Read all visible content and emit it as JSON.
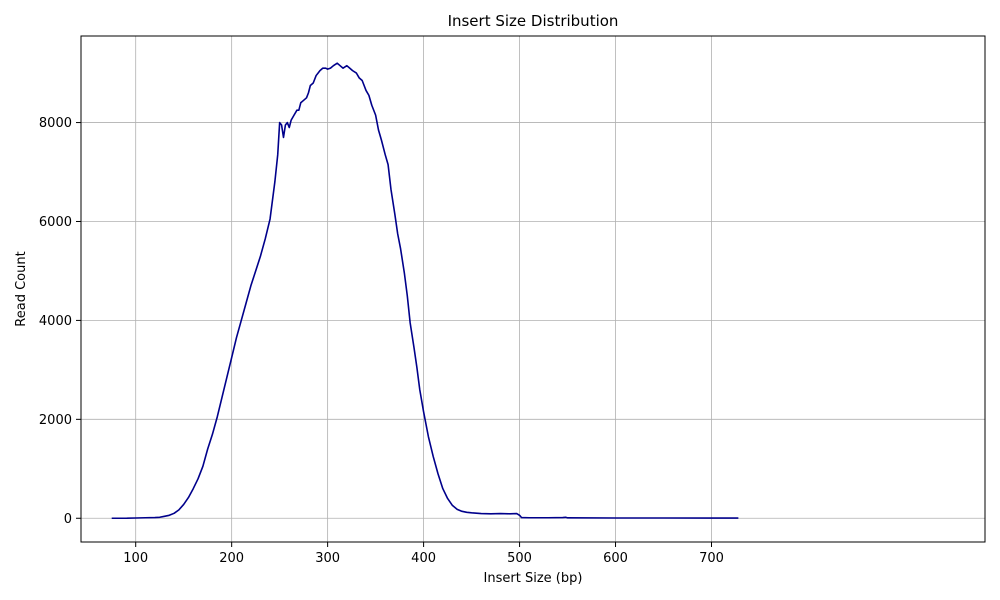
{
  "chart_data": {
    "type": "line",
    "title": "Insert Size Distribution",
    "xlabel": "Insert Size (bp)",
    "ylabel": "Read Count",
    "xlim": [
      43,
      985
    ],
    "ylim": [
      -480,
      9750
    ],
    "xticks": [
      100,
      200,
      300,
      400,
      500,
      600,
      700
    ],
    "yticks": [
      0,
      2000,
      4000,
      6000,
      8000
    ],
    "grid": true,
    "legend": "none",
    "series": [
      {
        "color": "#00008b",
        "points": [
          [
            75,
            0
          ],
          [
            90,
            0
          ],
          [
            100,
            5
          ],
          [
            110,
            10
          ],
          [
            120,
            15
          ],
          [
            125,
            20
          ],
          [
            130,
            40
          ],
          [
            135,
            60
          ],
          [
            140,
            100
          ],
          [
            145,
            170
          ],
          [
            150,
            280
          ],
          [
            155,
            420
          ],
          [
            160,
            600
          ],
          [
            165,
            800
          ],
          [
            170,
            1050
          ],
          [
            175,
            1400
          ],
          [
            180,
            1700
          ],
          [
            185,
            2050
          ],
          [
            190,
            2450
          ],
          [
            195,
            2850
          ],
          [
            200,
            3250
          ],
          [
            205,
            3650
          ],
          [
            210,
            4000
          ],
          [
            215,
            4350
          ],
          [
            220,
            4700
          ],
          [
            225,
            5000
          ],
          [
            230,
            5300
          ],
          [
            235,
            5650
          ],
          [
            240,
            6050
          ],
          [
            245,
            6800
          ],
          [
            248,
            7350
          ],
          [
            250,
            8000
          ],
          [
            252,
            7950
          ],
          [
            254,
            7700
          ],
          [
            256,
            7950
          ],
          [
            258,
            8000
          ],
          [
            260,
            7900
          ],
          [
            262,
            8050
          ],
          [
            265,
            8150
          ],
          [
            268,
            8250
          ],
          [
            270,
            8250
          ],
          [
            272,
            8400
          ],
          [
            275,
            8450
          ],
          [
            278,
            8500
          ],
          [
            280,
            8600
          ],
          [
            282,
            8750
          ],
          [
            285,
            8800
          ],
          [
            288,
            8950
          ],
          [
            290,
            9000
          ],
          [
            292,
            9050
          ],
          [
            295,
            9100
          ],
          [
            298,
            9100
          ],
          [
            300,
            9080
          ],
          [
            303,
            9100
          ],
          [
            306,
            9150
          ],
          [
            310,
            9200
          ],
          [
            313,
            9150
          ],
          [
            316,
            9100
          ],
          [
            320,
            9150
          ],
          [
            323,
            9100
          ],
          [
            326,
            9050
          ],
          [
            330,
            9000
          ],
          [
            333,
            8900
          ],
          [
            336,
            8850
          ],
          [
            340,
            8650
          ],
          [
            343,
            8550
          ],
          [
            346,
            8350
          ],
          [
            350,
            8150
          ],
          [
            353,
            7850
          ],
          [
            356,
            7650
          ],
          [
            360,
            7350
          ],
          [
            363,
            7150
          ],
          [
            366,
            6650
          ],
          [
            370,
            6150
          ],
          [
            373,
            5750
          ],
          [
            376,
            5450
          ],
          [
            380,
            4950
          ],
          [
            383,
            4500
          ],
          [
            386,
            3950
          ],
          [
            390,
            3450
          ],
          [
            393,
            3050
          ],
          [
            396,
            2600
          ],
          [
            400,
            2150
          ],
          [
            405,
            1650
          ],
          [
            410,
            1250
          ],
          [
            415,
            900
          ],
          [
            420,
            600
          ],
          [
            425,
            400
          ],
          [
            430,
            260
          ],
          [
            435,
            180
          ],
          [
            440,
            140
          ],
          [
            445,
            120
          ],
          [
            450,
            110
          ],
          [
            460,
            95
          ],
          [
            470,
            90
          ],
          [
            480,
            95
          ],
          [
            490,
            90
          ],
          [
            497,
            95
          ],
          [
            500,
            60
          ],
          [
            502,
            15
          ],
          [
            510,
            10
          ],
          [
            530,
            10
          ],
          [
            545,
            15
          ],
          [
            548,
            20
          ],
          [
            550,
            8
          ],
          [
            600,
            5
          ],
          [
            650,
            5
          ],
          [
            700,
            3
          ],
          [
            728,
            3
          ]
        ]
      }
    ]
  }
}
